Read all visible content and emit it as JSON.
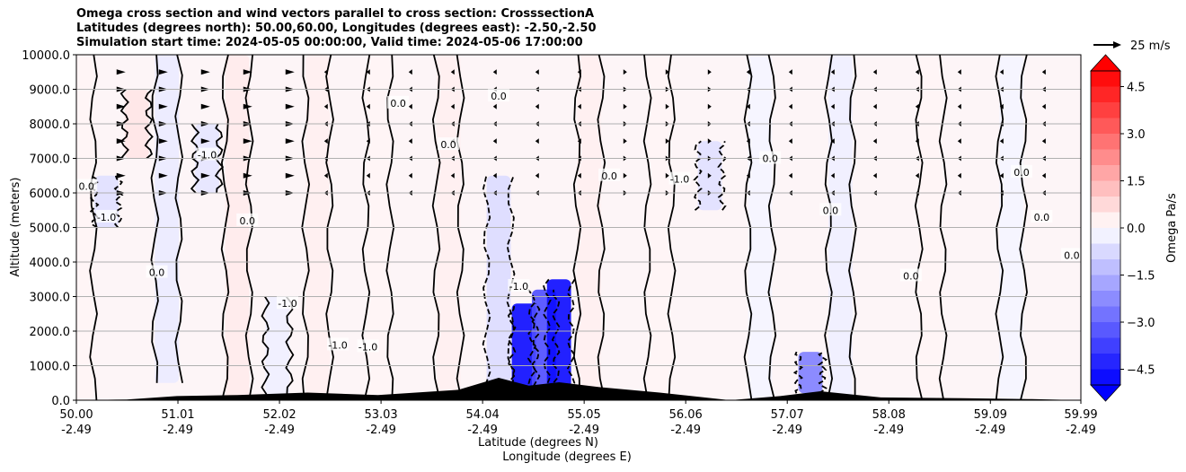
{
  "chart_data": {
    "type": "heatmap",
    "title_lines": [
      "Omega cross section and wind vectors parallel to cross section: CrosssectionA",
      "Latitudes (degrees north): 50.00,60.00, Longitudes (degrees east): -2.50,-2.50",
      "Simulation start time: 2024-05-05 00:00:00, Valid time: 2024-05-06 17:00:00"
    ],
    "ylabel": "Altitude (meters)",
    "xlabel": "Latitude (degrees N)",
    "xlabel2": "Longitude (degrees E)",
    "ylim": [
      0,
      10000
    ],
    "xlim": [
      50.0,
      59.99
    ],
    "grid": "horizontal",
    "y_ticks": [
      {
        "value": 0,
        "label": "0.0"
      },
      {
        "value": 1000,
        "label": "1000.0"
      },
      {
        "value": 2000,
        "label": "2000.0"
      },
      {
        "value": 3000,
        "label": "3000.0"
      },
      {
        "value": 4000,
        "label": "4000.0"
      },
      {
        "value": 5000,
        "label": "5000.0"
      },
      {
        "value": 6000,
        "label": "6000.0"
      },
      {
        "value": 7000,
        "label": "7000.0"
      },
      {
        "value": 8000,
        "label": "8000.0"
      },
      {
        "value": 9000,
        "label": "9000.0"
      },
      {
        "value": 10000,
        "label": "10000.0"
      }
    ],
    "x_ticks": [
      {
        "value": 50.0,
        "lat": "50.00",
        "lon": "-2.49"
      },
      {
        "value": 51.01,
        "lat": "51.01",
        "lon": "-2.49"
      },
      {
        "value": 52.02,
        "lat": "52.02",
        "lon": "-2.49"
      },
      {
        "value": 53.03,
        "lat": "53.03",
        "lon": "-2.49"
      },
      {
        "value": 54.04,
        "lat": "54.04",
        "lon": "-2.49"
      },
      {
        "value": 55.05,
        "lat": "55.05",
        "lon": "-2.49"
      },
      {
        "value": 56.06,
        "lat": "56.06",
        "lon": "-2.49"
      },
      {
        "value": 57.07,
        "lat": "57.07",
        "lon": "-2.49"
      },
      {
        "value": 58.08,
        "lat": "58.08",
        "lon": "-2.49"
      },
      {
        "value": 59.09,
        "lat": "59.09",
        "lon": "-2.49"
      },
      {
        "value": 59.99,
        "lat": "59.99",
        "lon": "-2.49"
      }
    ],
    "colorbar": {
      "label": "Omega Pa/s",
      "range": [
        -5,
        5
      ],
      "ticks": [
        {
          "value": 4.5,
          "label": "4.5"
        },
        {
          "value": 3.0,
          "label": "3.0"
        },
        {
          "value": 1.5,
          "label": "1.5"
        },
        {
          "value": 0.0,
          "label": "0.0"
        },
        {
          "value": -1.5,
          "label": "−1.5"
        },
        {
          "value": -3.0,
          "label": "−3.0"
        },
        {
          "value": -4.5,
          "label": "−4.5"
        }
      ],
      "positive_color": "#ff0000",
      "negative_color": "#0000ff"
    },
    "quiver_key": {
      "label": "25 m/s"
    },
    "omega_regions": [
      {
        "lat": 50.05,
        "z_min": 0,
        "z_max": 10000,
        "value": 0.2
      },
      {
        "lat": 50.3,
        "z_min": 5000,
        "z_max": 6500,
        "value": -0.6
      },
      {
        "lat": 50.6,
        "z_min": 7000,
        "z_max": 9000,
        "value": 0.5
      },
      {
        "lat": 50.9,
        "z_min": 500,
        "z_max": 10000,
        "value": -0.4
      },
      {
        "lat": 51.3,
        "z_min": 6000,
        "z_max": 8000,
        "value": -0.5
      },
      {
        "lat": 51.6,
        "z_min": 0,
        "z_max": 10000,
        "value": 0.4
      },
      {
        "lat": 52.0,
        "z_min": 0,
        "z_max": 3000,
        "value": -0.3
      },
      {
        "lat": 52.4,
        "z_min": 0,
        "z_max": 10000,
        "value": 0.3
      },
      {
        "lat": 53.0,
        "z_min": 0,
        "z_max": 10000,
        "value": 0.2
      },
      {
        "lat": 53.7,
        "z_min": 0,
        "z_max": 10000,
        "value": 0.3
      },
      {
        "lat": 54.2,
        "z_min": 0,
        "z_max": 6500,
        "value": -0.7
      },
      {
        "lat": 54.45,
        "z_min": 0,
        "z_max": 2800,
        "value": -4.8
      },
      {
        "lat": 54.65,
        "z_min": 300,
        "z_max": 3200,
        "value": -3.5
      },
      {
        "lat": 54.8,
        "z_min": 300,
        "z_max": 3500,
        "value": -4.8
      },
      {
        "lat": 55.1,
        "z_min": 0,
        "z_max": 10000,
        "value": 0.3
      },
      {
        "lat": 55.8,
        "z_min": 0,
        "z_max": 10000,
        "value": 0.2
      },
      {
        "lat": 56.3,
        "z_min": 5500,
        "z_max": 7500,
        "value": -0.6
      },
      {
        "lat": 56.8,
        "z_min": 0,
        "z_max": 10000,
        "value": -0.2
      },
      {
        "lat": 57.3,
        "z_min": 200,
        "z_max": 1400,
        "value": -2.5
      },
      {
        "lat": 57.6,
        "z_min": 0,
        "z_max": 10000,
        "value": -0.3
      },
      {
        "lat": 58.5,
        "z_min": 0,
        "z_max": 10000,
        "value": 0.2
      },
      {
        "lat": 59.3,
        "z_min": 0,
        "z_max": 10000,
        "value": -0.2
      }
    ],
    "contour_labels": [
      {
        "lat": 50.1,
        "z": 6200,
        "label": "0.0"
      },
      {
        "lat": 50.3,
        "z": 5300,
        "label": "-1.0"
      },
      {
        "lat": 50.8,
        "z": 3700,
        "label": "0.0"
      },
      {
        "lat": 51.3,
        "z": 7100,
        "label": "-1.0"
      },
      {
        "lat": 51.7,
        "z": 5200,
        "label": "0.0"
      },
      {
        "lat": 52.1,
        "z": 2800,
        "label": "-1.0"
      },
      {
        "lat": 52.6,
        "z": 1600,
        "label": "-1.0"
      },
      {
        "lat": 52.9,
        "z": 1550,
        "label": "-1.0"
      },
      {
        "lat": 53.2,
        "z": 8600,
        "label": "0.0"
      },
      {
        "lat": 53.7,
        "z": 7400,
        "label": "0.0"
      },
      {
        "lat": 54.2,
        "z": 8800,
        "label": "0.0"
      },
      {
        "lat": 54.4,
        "z": 3300,
        "label": "-1.0"
      },
      {
        "lat": 55.3,
        "z": 6500,
        "label": "0.0"
      },
      {
        "lat": 56.0,
        "z": 6400,
        "label": "-1.0"
      },
      {
        "lat": 56.9,
        "z": 7000,
        "label": "0.0"
      },
      {
        "lat": 57.5,
        "z": 5500,
        "label": "0.0"
      },
      {
        "lat": 58.3,
        "z": 3600,
        "label": "0.0"
      },
      {
        "lat": 59.4,
        "z": 6600,
        "label": "0.0"
      },
      {
        "lat": 59.6,
        "z": 5300,
        "label": "0.0"
      },
      {
        "lat": 59.9,
        "z": 4200,
        "label": "0.0"
      }
    ],
    "terrain": [
      {
        "lat": 50.5,
        "height": 20
      },
      {
        "lat": 51.0,
        "height": 120
      },
      {
        "lat": 51.6,
        "height": 150
      },
      {
        "lat": 52.3,
        "height": 220
      },
      {
        "lat": 53.0,
        "height": 150
      },
      {
        "lat": 53.8,
        "height": 300
      },
      {
        "lat": 54.2,
        "height": 650
      },
      {
        "lat": 54.5,
        "height": 420
      },
      {
        "lat": 54.8,
        "height": 520
      },
      {
        "lat": 55.2,
        "height": 380
      },
      {
        "lat": 55.8,
        "height": 220
      },
      {
        "lat": 56.5,
        "height": 0
      },
      {
        "lat": 57.0,
        "height": 120
      },
      {
        "lat": 57.4,
        "height": 260
      },
      {
        "lat": 58.0,
        "height": 80
      },
      {
        "lat": 58.8,
        "height": 60
      },
      {
        "lat": 59.5,
        "height": 30
      }
    ]
  }
}
